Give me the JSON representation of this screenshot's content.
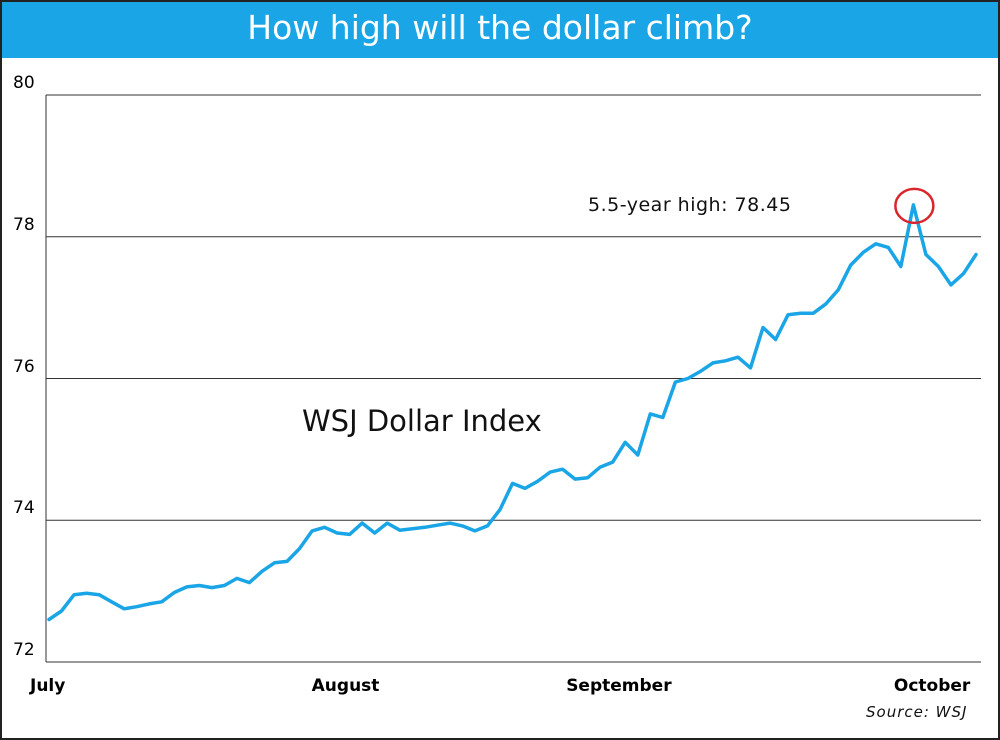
{
  "chart_data": {
    "type": "line",
    "title": "How high will the dollar climb?",
    "series": [
      {
        "name": "WSJ Dollar Index",
        "color": "#1aa5e6",
        "values": [
          72.6,
          72.72,
          72.95,
          72.97,
          72.95,
          72.85,
          72.75,
          72.78,
          72.82,
          72.85,
          72.98,
          73.06,
          73.08,
          73.05,
          73.08,
          73.18,
          73.12,
          73.28,
          73.4,
          73.42,
          73.6,
          73.85,
          73.9,
          73.82,
          73.8,
          73.96,
          73.82,
          73.96,
          73.86,
          73.88,
          73.9,
          73.93,
          73.96,
          73.92,
          73.85,
          73.92,
          74.15,
          74.52,
          74.45,
          74.55,
          74.68,
          74.72,
          74.58,
          74.6,
          74.75,
          74.82,
          75.1,
          74.92,
          75.5,
          75.45,
          75.95,
          76.0,
          76.1,
          76.22,
          76.25,
          76.3,
          76.15,
          76.72,
          76.55,
          76.9,
          76.92,
          76.92,
          77.05,
          77.25,
          77.6,
          77.78,
          77.9,
          77.85,
          77.58,
          78.45,
          77.75,
          77.58,
          77.32,
          77.48,
          77.75
        ]
      }
    ],
    "xtick_labels": [
      "July",
      "August",
      "September",
      "October"
    ],
    "xtick_index": [
      0,
      24,
      44,
      70
    ],
    "ylim": [
      72,
      80
    ],
    "yticks": [
      72,
      74,
      76,
      78,
      80
    ],
    "ytick_labels": [
      "72",
      "74",
      "76",
      "78",
      "80"
    ],
    "grid": true,
    "annotation": {
      "text": "5.5-year high: 78.45",
      "point_index": 69,
      "value": 78.45,
      "marker_color": "#d9262c"
    },
    "series_label": "WSJ Dollar Index",
    "source": "Source: WSJ"
  }
}
